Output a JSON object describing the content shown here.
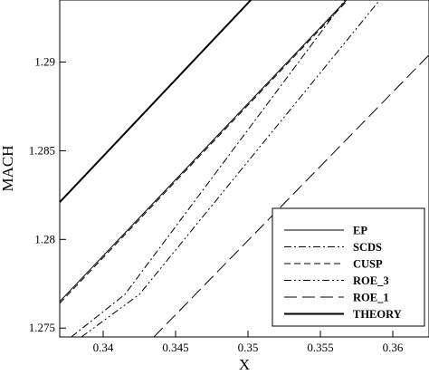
{
  "chart_data": {
    "type": "line",
    "title": "",
    "xlabel": "X",
    "ylabel": "MACH",
    "xlim": [
      0.337,
      0.3625
    ],
    "ylim": [
      1.2745,
      1.2935
    ],
    "xticks": [
      0.34,
      0.345,
      0.35,
      0.355,
      0.36
    ],
    "xtick_labels": [
      "0.34",
      "0.345",
      "0.35",
      "0.355",
      "0.36"
    ],
    "yticks": [
      1.275,
      1.28,
      1.285,
      1.29
    ],
    "ytick_labels": [
      "1.275",
      "1.28",
      "1.285",
      "1.29"
    ],
    "grid": false,
    "legend_position": "bottom-right",
    "series": [
      {
        "name": "EP",
        "style": "solid",
        "width": 1,
        "x": [
          0.337,
          0.3568
        ],
        "y": [
          1.2765,
          1.2935
        ]
      },
      {
        "name": "SCDS",
        "style": "dashdot",
        "width": 1,
        "x": [
          0.3378,
          0.3415,
          0.3567
        ],
        "y": [
          1.2745,
          1.2769,
          1.2935
        ]
      },
      {
        "name": "CUSP",
        "style": "dashed",
        "width": 1,
        "x": [
          0.337,
          0.3569
        ],
        "y": [
          1.2764,
          1.2935
        ]
      },
      {
        "name": "ROE_3",
        "style": "dashdotdot",
        "width": 1,
        "x": [
          0.3385,
          0.3425,
          0.3591
        ],
        "y": [
          1.2745,
          1.2769,
          1.2935
        ]
      },
      {
        "name": "ROE_1",
        "style": "longdash",
        "width": 1,
        "x": [
          0.3435,
          0.3625
        ],
        "y": [
          1.2745,
          1.2904
        ]
      },
      {
        "name": "THEORY",
        "style": "solid",
        "width": 2,
        "x": [
          0.337,
          0.3502
        ],
        "y": [
          1.2821,
          1.2935
        ]
      }
    ]
  }
}
